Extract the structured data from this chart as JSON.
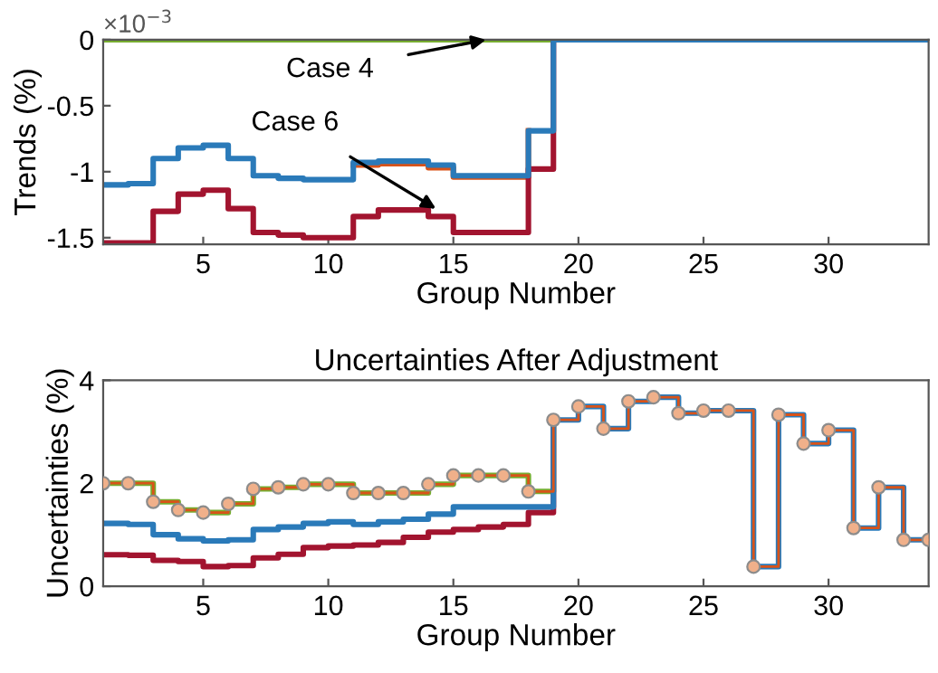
{
  "chart_data": [
    {
      "type": "step",
      "ylabel": "Trends (%)",
      "xlabel": "Group Number",
      "x": [
        1,
        2,
        3,
        4,
        5,
        6,
        7,
        8,
        9,
        10,
        11,
        12,
        13,
        14,
        15,
        16,
        17,
        18,
        19,
        20,
        21,
        22,
        23,
        24,
        25,
        26,
        27,
        28,
        29,
        30,
        31,
        32,
        33,
        34
      ],
      "series": [
        {
          "color": "#d95319",
          "values": [
            null,
            null,
            null,
            null,
            null,
            null,
            null,
            null,
            null,
            null,
            -0.95,
            -0.94,
            -0.94,
            -0.97,
            -1.04,
            -1.04,
            -1.04,
            -0.69,
            null,
            null,
            null,
            null,
            null,
            null,
            null,
            null,
            null,
            null,
            null,
            null,
            null,
            null,
            null,
            null
          ]
        },
        {
          "color": "#77ac30",
          "values": [
            0,
            0,
            0,
            0,
            0,
            0,
            0,
            0,
            0,
            0,
            0,
            0,
            0,
            0,
            0,
            0,
            0,
            0,
            0,
            null,
            null,
            null,
            null,
            null,
            null,
            null,
            null,
            null,
            null,
            null,
            null,
            null,
            null,
            null
          ]
        },
        {
          "color": "#a2142f",
          "values": [
            -1.54,
            -1.54,
            -1.3,
            -1.17,
            -1.14,
            -1.28,
            -1.46,
            -1.48,
            -1.5,
            -1.5,
            -1.34,
            -1.29,
            -1.29,
            -1.34,
            -1.46,
            -1.46,
            -1.46,
            -0.98,
            0,
            null,
            null,
            null,
            null,
            null,
            null,
            null,
            null,
            null,
            null,
            null,
            null,
            null,
            null,
            null
          ]
        },
        {
          "color": "#2a7ab9",
          "values": [
            -1.1,
            -1.09,
            -0.9,
            -0.82,
            -0.8,
            -0.9,
            -1.03,
            -1.05,
            -1.06,
            -1.06,
            -0.93,
            -0.92,
            -0.92,
            -0.95,
            -1.03,
            -1.03,
            -1.03,
            -0.69,
            0,
            0,
            0,
            0,
            0,
            0,
            0,
            0,
            0,
            0,
            0,
            0,
            0,
            0,
            0,
            0
          ]
        }
      ],
      "xlim": [
        1,
        34
      ],
      "xticks": [
        5,
        10,
        15,
        20,
        25,
        30
      ],
      "ylim": [
        -1.55,
        0
      ],
      "yticks": [
        -1.5,
        -1,
        -0.5,
        0
      ],
      "annotations": [
        "×10$^{−3}$",
        {
          "text": "Case 4",
          "x": 16.3,
          "y": 0
        },
        {
          "text": "Case 6",
          "x": 14.3,
          "y": -1.28
        }
      ]
    },
    {
      "type": "step",
      "title": "Uncertainties After Adjustment",
      "ylabel": "Uncertainties (%)",
      "xlabel": "Group Number",
      "x": [
        1,
        2,
        3,
        4,
        5,
        6,
        7,
        8,
        9,
        10,
        11,
        12,
        13,
        14,
        15,
        16,
        17,
        18,
        19,
        20,
        21,
        22,
        23,
        24,
        25,
        26,
        27,
        28,
        29,
        30,
        31,
        32,
        33,
        34
      ],
      "series": [
        {
          "color": "#d95319",
          "marker": "circle",
          "values": [
            2.0,
            2.0,
            1.64,
            1.48,
            1.43,
            1.6,
            1.89,
            1.92,
            1.98,
            1.98,
            1.81,
            1.81,
            1.81,
            1.98,
            2.15,
            2.15,
            2.15,
            1.84,
            3.23,
            3.49,
            3.06,
            3.59,
            3.67,
            3.36,
            3.41,
            3.41,
            0.38,
            3.33,
            2.77,
            3.03,
            1.13,
            1.92,
            0.9,
            0.9
          ]
        },
        {
          "color": "#77ac30",
          "values": [
            2.0,
            2.0,
            1.64,
            1.48,
            1.43,
            1.6,
            1.89,
            1.92,
            1.98,
            1.98,
            1.81,
            1.81,
            1.81,
            1.98,
            2.15,
            2.15,
            2.15,
            1.84,
            3.23,
            null,
            null,
            null,
            null,
            null,
            null,
            null,
            null,
            null,
            null,
            null,
            null,
            null,
            null,
            null
          ]
        },
        {
          "color": "#a2142f",
          "values": [
            0.61,
            0.6,
            0.5,
            0.48,
            0.38,
            0.4,
            0.55,
            0.62,
            0.75,
            0.78,
            0.8,
            0.85,
            0.95,
            1.05,
            1.1,
            1.15,
            1.2,
            1.43,
            3.23,
            null,
            null,
            null,
            null,
            null,
            null,
            null,
            null,
            null,
            null,
            null,
            null,
            null,
            null,
            null
          ]
        },
        {
          "color": "#2a7ab9",
          "values": [
            1.22,
            1.2,
            1.0,
            0.92,
            0.88,
            0.9,
            1.1,
            1.15,
            1.22,
            1.25,
            1.2,
            1.25,
            1.3,
            1.4,
            1.54,
            1.54,
            1.54,
            1.54,
            3.23,
            3.49,
            3.06,
            3.59,
            3.67,
            3.36,
            3.41,
            3.41,
            0.38,
            3.33,
            2.77,
            3.03,
            1.13,
            1.92,
            0.9,
            0.9
          ]
        }
      ],
      "xlim": [
        1,
        34
      ],
      "xticks": [
        5,
        10,
        15,
        20,
        25,
        30
      ],
      "ylim": [
        0,
        4
      ],
      "yticks": [
        0,
        2,
        4
      ]
    }
  ]
}
